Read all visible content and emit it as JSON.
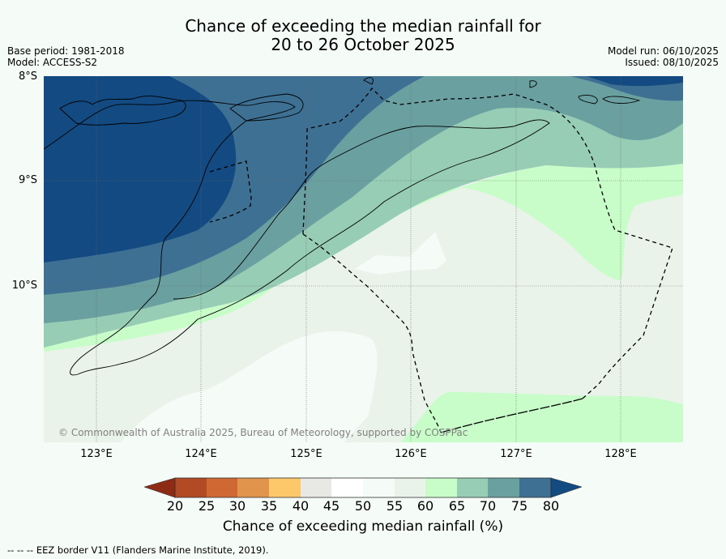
{
  "title": {
    "line1": "Chance of exceeding the median rainfall for",
    "line2": "20 to 26 October 2025"
  },
  "meta_left": {
    "base_period": "Base period: 1981-2018",
    "model": "Model: ACCESS-S2"
  },
  "meta_right": {
    "model_run": "Model run: 06/10/2025",
    "issued": "Issued: 08/10/2025"
  },
  "axes": {
    "lat_labels": [
      "8°S",
      "9°S",
      "10°S"
    ],
    "lon_labels": [
      "123°E",
      "124°E",
      "125°E",
      "126°E",
      "127°E",
      "128°E"
    ],
    "lat_range": [
      -11.5,
      -8
    ],
    "lon_range": [
      122.5,
      128.6
    ]
  },
  "copyright": "© Commonwealth of Australia 2025, Bureau of Meteorology, supported by COSPPac",
  "colorbar": {
    "label": "Chance of exceeding median rainfall (%)",
    "ticks": [
      "20",
      "25",
      "30",
      "35",
      "40",
      "45",
      "50",
      "55",
      "60",
      "65",
      "70",
      "75",
      "80"
    ],
    "colors": {
      "below_20": "#8e2b14",
      "c20_25": "#b24a25",
      "c25_30": "#cf6832",
      "c30_35": "#e1944b",
      "c35_40": "#fcc869",
      "c40_45": "#e8e8e4",
      "c45_50": "#ffffff",
      "c50_55": "#f5fbf7",
      "c55_60": "#e9f3e9",
      "c60_65": "#c8fcc8",
      "c65_70": "#97cdb5",
      "c70_75": "#6ba0a1",
      "c75_80": "#3e7094",
      "above_80": "#134a82"
    }
  },
  "legend_note": "--  --  -- EEZ border V11 (Flanders Marine Institute, 2019)."
}
